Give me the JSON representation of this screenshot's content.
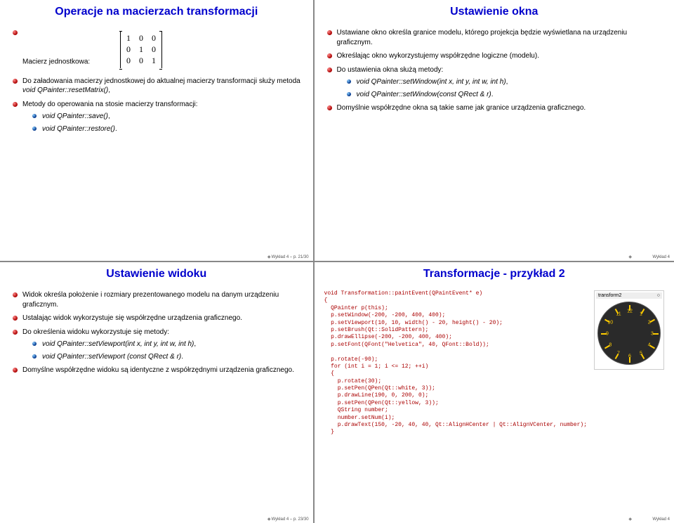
{
  "slides": {
    "tl": {
      "title": "Operacje na macierzach transformacji",
      "b1": "Macierz jednostkowa:",
      "matrix": [
        [
          "1",
          "0",
          "0"
        ],
        [
          "0",
          "1",
          "0"
        ],
        [
          "0",
          "0",
          "1"
        ]
      ],
      "b2_pre": "Do załadowania macierzy jednostkowej do aktualnej macierzy transformacji służy metoda ",
      "b2_it": "void QPainter::resetMatrix()",
      "b3": "Metody do operowania na stosie macierzy transformacji:",
      "b3s1": "void QPainter::save()",
      "b3s2": "void QPainter::restore()",
      "footer": "Wykład 4 – p. 21/30"
    },
    "tr": {
      "title": "Ustawienie okna",
      "b1": "Ustawiane okno określa granice modelu, którego projekcja będzie wyświetlana na urządzeniu graficznym.",
      "b2": "Określając okno wykorzystujemy współrzędne logiczne (modelu).",
      "b3": "Do ustawienia okna służą metody:",
      "b3s1": "void QPainter::setWindow(int x, int y, int w, int h)",
      "b3s2": "void QPainter::setWindow(const QRect & r)",
      "b4": "Domyślnie współrzędne okna są takie same jak granice urządzenia graficznego.",
      "footer": "Wykład 4"
    },
    "bl": {
      "title": "Ustawienie widoku",
      "b1": "Widok określa położenie i rozmiary prezentowanego modelu na danym urządzeniu graficznym.",
      "b2": "Ustalając widok wykorzystuje się współrzędne urządzenia graficznego.",
      "b3": "Do określenia widoku wykorzystuje się metody:",
      "b3s1": "void QPainter::setViewport(int x, int y, int w, int h)",
      "b3s2": "void QPainter::setViewport (const QRect & r)",
      "b4": "Domyślne współrzędne widoku są identyczne z współrzędnymi urządzenia graficznego.",
      "footer": "Wykład 4 – p. 23/30"
    },
    "br": {
      "title": "Transformacje - przykład 2",
      "clock_title": "transform2",
      "code": "void Transformation::paintEvent(QPaintEvent* e)\n{\n  QPainter p(this);\n  p.setWindow(-200, -200, 400, 400);\n  p.setViewport(10, 10, width() - 20, height() - 20);\n  p.setBrush(Qt::SolidPattern);\n  p.drawEllipse(-200, -200, 400, 400);\n  p.setFont(QFont(\"Helvetica\", 40, QFont::Bold));\n\n  p.rotate(-90);\n  for (int i = 1; i <= 12; ++i)\n  {\n    p.rotate(30);\n    p.setPen(QPen(Qt::white, 3));\n    p.drawLine(190, 0, 200, 0);\n    p.setPen(QPen(Qt::yellow, 3));\n    QString number;\n    number.setNum(i);\n    p.drawText(150, -20, 40, 40, Qt::AlignHCenter | Qt::AlignVCenter, number);\n  }",
      "footer": "Wykład 4"
    }
  },
  "colors": {
    "title": "#0000cc",
    "code": "#aa0000",
    "bullet1": "#aa0000",
    "bullet2": "#003388"
  }
}
